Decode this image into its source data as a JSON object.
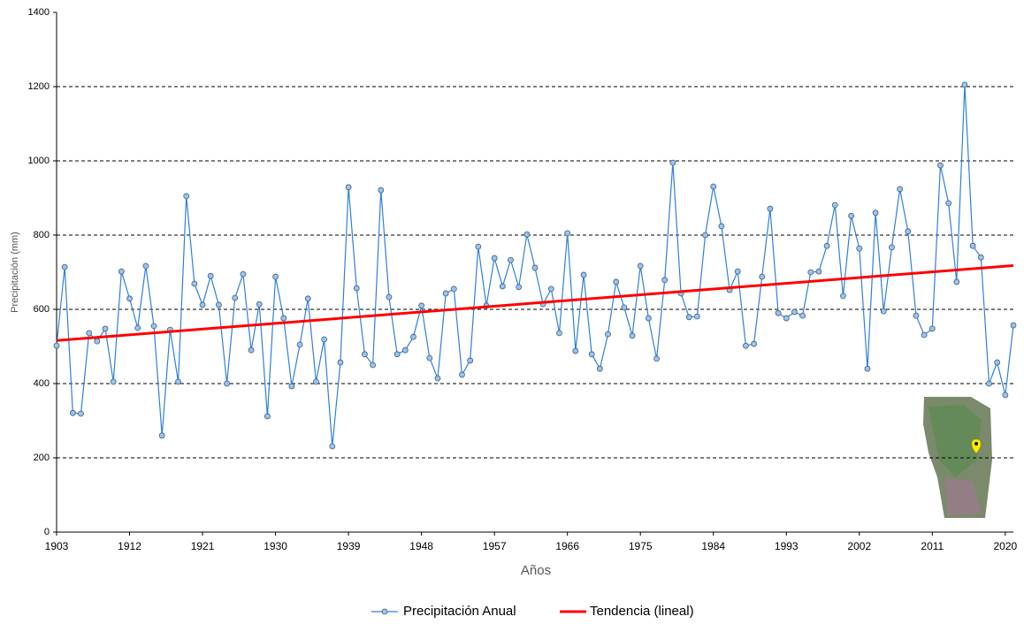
{
  "chart_data": {
    "type": "line",
    "y_label": "Precipitación (mm)",
    "x_label": "Años",
    "xlim": [
      1903,
      2021
    ],
    "xticks": [
      1903,
      1912,
      1921,
      1930,
      1939,
      1948,
      1957,
      1966,
      1975,
      1984,
      1993,
      2002,
      2011,
      2020
    ],
    "ylim": [
      0,
      1400
    ],
    "yticks": [
      0,
      200,
      400,
      600,
      800,
      1000,
      1200,
      1400
    ],
    "grid": true,
    "legend": "bottom",
    "series": [
      {
        "name": "Precipitación Anual",
        "color": "#2f7fe0",
        "marker_color": "#9dc3e6",
        "x": [
          1903,
          1904,
          1905,
          1906,
          1907,
          1908,
          1909,
          1910,
          1911,
          1912,
          1913,
          1914,
          1915,
          1916,
          1917,
          1918,
          1919,
          1920,
          1921,
          1922,
          1923,
          1924,
          1925,
          1926,
          1927,
          1928,
          1929,
          1930,
          1931,
          1932,
          1933,
          1934,
          1935,
          1936,
          1937,
          1938,
          1939,
          1940,
          1941,
          1942,
          1943,
          1944,
          1945,
          1946,
          1947,
          1948,
          1949,
          1950,
          1951,
          1952,
          1953,
          1954,
          1955,
          1956,
          1957,
          1958,
          1959,
          1960,
          1961,
          1962,
          1963,
          1964,
          1965,
          1966,
          1967,
          1968,
          1969,
          1970,
          1971,
          1972,
          1973,
          1974,
          1975,
          1976,
          1977,
          1978,
          1979,
          1980,
          1981,
          1982,
          1983,
          1984,
          1985,
          1986,
          1987,
          1988,
          1989,
          1990,
          1991,
          1992,
          1993,
          1994,
          1995,
          1996,
          1997,
          1998,
          1999,
          2000,
          2001,
          2002,
          2003,
          2004,
          2005,
          2006,
          2007,
          2008,
          2009,
          2010,
          2011,
          2012,
          2013,
          2014,
          2015,
          2016,
          2017,
          2018,
          2019,
          2020,
          2021
        ],
        "values": [
          502,
          714,
          321,
          319,
          536,
          514,
          548,
          405,
          702,
          629,
          550,
          717,
          555,
          260,
          545,
          405,
          905,
          669,
          612,
          690,
          612,
          400,
          631,
          695,
          490,
          614,
          312,
          688,
          576,
          393,
          505,
          629,
          405,
          519,
          231,
          457,
          929,
          657,
          479,
          450,
          921,
          633,
          479,
          490,
          526,
          610,
          469,
          414,
          643,
          655,
          424,
          462,
          769,
          610,
          738,
          662,
          733,
          660,
          802,
          712,
          614,
          655,
          536,
          805,
          488,
          693,
          479,
          440,
          533,
          674,
          605,
          529,
          717,
          576,
          467,
          679,
          995,
          643,
          579,
          581,
          800,
          931,
          824,
          652,
          702,
          502,
          507,
          688,
          871,
          590,
          576,
          593,
          583,
          700,
          702,
          771,
          881,
          636,
          852,
          764,
          440,
          860,
          595,
          767,
          924,
          810,
          583,
          531,
          548,
          988,
          886,
          674,
          1205,
          771,
          740,
          400,
          457,
          369,
          557
        ]
      },
      {
        "name": "Tendencia (lineal)",
        "color": "#ff0000",
        "x": [
          1903,
          2021
        ],
        "values": [
          516,
          718
        ]
      }
    ]
  }
}
